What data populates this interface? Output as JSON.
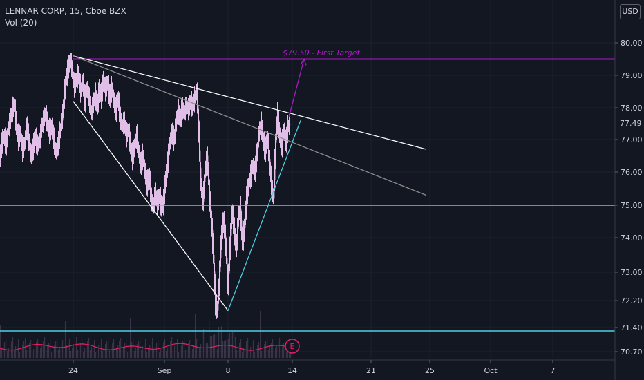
{
  "header": {
    "symbol": "LENNAR CORP, 15, Cboe BZX",
    "volume_indicator": "Vol (20)"
  },
  "currency_button": "USD",
  "colors": {
    "background": "#131722",
    "candle": "#e1bee7",
    "target_line": "#ab19c7",
    "support_line": "#4dd0e1",
    "trend_line": "#ffffff",
    "channel_line": "#8d8d8d",
    "volume_ma": "#e91e63",
    "price_label_bg": "#131722"
  },
  "annotation": {
    "target_text": "$79.50 - First Target",
    "earnings_marker": "E"
  },
  "current_price_label": "77.49",
  "chart_data": {
    "type": "candlestick",
    "title": "LENNAR CORP, 15, Cboe BZX",
    "interval": "15",
    "currency": "USD",
    "y_ticks": [
      "80.00",
      "79.00",
      "78.00",
      "77.00",
      "76.00",
      "75.00",
      "74.00",
      "73.00",
      "72.20",
      "71.40",
      "70.70"
    ],
    "x_ticks": [
      "24",
      "Sep",
      "8",
      "14",
      "21",
      "25",
      "Oct",
      "7"
    ],
    "price_levels": {
      "first_target": 79.5,
      "support": 75.0,
      "last": 77.49
    },
    "price_path": [
      [
        0,
        76.4
      ],
      [
        3,
        76.9
      ],
      [
        6,
        77.1
      ],
      [
        9,
        76.8
      ],
      [
        12,
        77.3
      ],
      [
        15,
        77.6
      ],
      [
        18,
        77.9
      ],
      [
        21,
        78.1
      ],
      [
        24,
        77.4
      ],
      [
        27,
        77.0
      ],
      [
        30,
        77.2
      ],
      [
        33,
        76.6
      ],
      [
        36,
        76.9
      ],
      [
        39,
        77.4
      ],
      [
        42,
        77.0
      ],
      [
        45,
        76.5
      ],
      [
        48,
        76.7
      ],
      [
        51,
        77.1
      ],
      [
        54,
        76.8
      ],
      [
        57,
        76.9
      ],
      [
        60,
        77.3
      ],
      [
        63,
        77.6
      ],
      [
        66,
        77.8
      ],
      [
        69,
        77.5
      ],
      [
        72,
        77.2
      ],
      [
        75,
        77.4
      ],
      [
        78,
        77.0
      ],
      [
        81,
        76.6
      ],
      [
        84,
        76.8
      ],
      [
        87,
        77.2
      ],
      [
        90,
        77.6
      ],
      [
        93,
        78.3
      ],
      [
        96,
        78.9
      ],
      [
        99,
        79.2
      ],
      [
        102,
        79.5
      ],
      [
        105,
        79.1
      ],
      [
        108,
        78.6
      ],
      [
        111,
        78.9
      ],
      [
        114,
        79.0
      ],
      [
        117,
        78.5
      ],
      [
        120,
        78.8
      ],
      [
        123,
        78.2
      ],
      [
        126,
        78.6
      ],
      [
        129,
        78.3
      ],
      [
        132,
        77.8
      ],
      [
        135,
        78.1
      ],
      [
        138,
        78.4
      ],
      [
        141,
        78.0
      ],
      [
        144,
        78.6
      ],
      [
        147,
        78.3
      ],
      [
        150,
        78.9
      ],
      [
        153,
        78.5
      ],
      [
        156,
        78.8
      ],
      [
        159,
        78.3
      ],
      [
        162,
        78.6
      ],
      [
        165,
        78.2
      ],
      [
        168,
        77.9
      ],
      [
        171,
        78.3
      ],
      [
        174,
        77.7
      ],
      [
        177,
        77.4
      ],
      [
        180,
        77.6
      ],
      [
        183,
        77.1
      ],
      [
        186,
        77.3
      ],
      [
        189,
        76.8
      ],
      [
        192,
        76.4
      ],
      [
        195,
        76.8
      ],
      [
        198,
        77.1
      ],
      [
        201,
        76.6
      ],
      [
        204,
        76.2
      ],
      [
        207,
        76.5
      ],
      [
        210,
        76.0
      ],
      [
        213,
        75.6
      ],
      [
        216,
        75.9
      ],
      [
        219,
        75.2
      ],
      [
        222,
        74.9
      ],
      [
        225,
        75.4
      ],
      [
        228,
        75.0
      ],
      [
        231,
        75.3
      ],
      [
        234,
        74.9
      ],
      [
        237,
        75.1
      ],
      [
        240,
        75.8
      ],
      [
        243,
        76.3
      ],
      [
        246,
        76.9
      ],
      [
        249,
        77.2
      ],
      [
        252,
        77.0
      ],
      [
        255,
        77.5
      ],
      [
        258,
        77.9
      ],
      [
        261,
        77.6
      ],
      [
        264,
        78.0
      ],
      [
        267,
        77.8
      ],
      [
        270,
        78.1
      ],
      [
        273,
        77.9
      ],
      [
        276,
        78.2
      ],
      [
        279,
        78.0
      ],
      [
        282,
        78.3
      ],
      [
        285,
        78.5
      ],
      [
        288,
        77.2
      ],
      [
        291,
        75.6
      ],
      [
        294,
        75.1
      ],
      [
        297,
        76.0
      ],
      [
        300,
        76.5
      ],
      [
        303,
        75.4
      ],
      [
        306,
        74.6
      ],
      [
        309,
        73.5
      ],
      [
        312,
        72.1
      ],
      [
        315,
        71.9
      ],
      [
        318,
        73.0
      ],
      [
        321,
        74.2
      ],
      [
        324,
        74.5
      ],
      [
        327,
        73.8
      ],
      [
        330,
        72.6
      ],
      [
        333,
        73.7
      ],
      [
        336,
        74.8
      ],
      [
        339,
        74.3
      ],
      [
        342,
        73.6
      ],
      [
        345,
        74.6
      ],
      [
        348,
        74.9
      ],
      [
        351,
        73.8
      ],
      [
        354,
        74.3
      ],
      [
        357,
        75.2
      ],
      [
        360,
        75.6
      ],
      [
        363,
        75.9
      ],
      [
        366,
        76.2
      ],
      [
        369,
        76.0
      ],
      [
        372,
        76.5
      ],
      [
        375,
        77.2
      ],
      [
        378,
        77.5
      ],
      [
        381,
        77.0
      ],
      [
        384,
        76.6
      ],
      [
        387,
        77.1
      ],
      [
        390,
        76.4
      ],
      [
        393,
        75.6
      ],
      [
        396,
        75.2
      ],
      [
        399,
        76.9
      ],
      [
        402,
        77.8
      ],
      [
        405,
        77.1
      ],
      [
        408,
        76.8
      ],
      [
        411,
        77.3
      ],
      [
        414,
        76.9
      ],
      [
        417,
        77.4
      ],
      [
        420,
        77.5
      ]
    ],
    "drawings": [
      {
        "name": "upper-trendline",
        "from": [
          "Aug 24",
          79.6
        ],
        "to": [
          "Sep 25",
          76.7
        ]
      },
      {
        "name": "channel-line",
        "from": [
          "Aug 24",
          79.6
        ],
        "to": [
          "Sep 25",
          75.3
        ]
      },
      {
        "name": "falling-wedge-line",
        "from": [
          "Aug 24",
          78.2
        ],
        "to": [
          "Sep 8",
          71.9
        ]
      },
      {
        "name": "rising-support-line",
        "from": [
          "Sep 8",
          71.9
        ],
        "to": [
          "Sep 14",
          77.6
        ]
      },
      {
        "name": "target-arrow",
        "from": [
          "Sep 14",
          77.7
        ],
        "to": [
          "Sep 14",
          79.5
        ]
      }
    ]
  }
}
